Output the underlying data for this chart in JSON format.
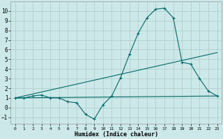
{
  "xlabel": "Humidex (Indice chaleur)",
  "bg_color": "#cce8e8",
  "grid_color": "#aacccc",
  "line_color": "#006868",
  "xlim": [
    -0.5,
    23.5
  ],
  "ylim": [
    -1.7,
    11.0
  ],
  "xticks": [
    0,
    1,
    2,
    3,
    4,
    5,
    6,
    7,
    8,
    9,
    10,
    11,
    12,
    13,
    14,
    15,
    16,
    17,
    18,
    19,
    20,
    21,
    22,
    23
  ],
  "yticks": [
    -1,
    0,
    1,
    2,
    3,
    4,
    5,
    6,
    7,
    8,
    9,
    10
  ],
  "line1_x": [
    0,
    1,
    2,
    3,
    4,
    5,
    6,
    7,
    8,
    9,
    10,
    11,
    12,
    13,
    14,
    15,
    16,
    17,
    18,
    19,
    20,
    21,
    22,
    23
  ],
  "line1_y": [
    1,
    1,
    1.2,
    1.3,
    1.0,
    1.0,
    0.6,
    0.5,
    -0.7,
    -1.2,
    0.3,
    1.2,
    3.1,
    5.5,
    7.7,
    9.3,
    10.2,
    10.3,
    9.3,
    4.7,
    4.5,
    3.0,
    1.7,
    1.2
  ],
  "line2_x": [
    0,
    23
  ],
  "line2_y": [
    1.0,
    1.2
  ],
  "line3_x": [
    0,
    23
  ],
  "line3_y": [
    1.0,
    5.7
  ]
}
